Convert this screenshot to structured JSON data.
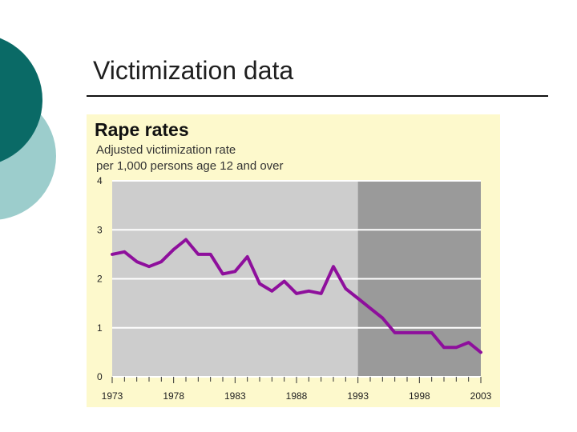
{
  "slide": {
    "title": "Victimization data"
  },
  "colors": {
    "teal_dark": "#0a6a66",
    "teal_light": "#9ccdcc",
    "panel_bg": "#fdf9cc",
    "plot_bg": "#cdcdcd",
    "plot_shaded": "#9a9a9a",
    "gridline": "#ffffff",
    "line": "#8e0f9c"
  },
  "chart_data": {
    "type": "line",
    "title": "Rape rates",
    "subtitle": [
      "Adjusted victimization rate",
      "per 1,000 persons age 12 and over"
    ],
    "xlim": [
      1973,
      2003
    ],
    "ylim": [
      0,
      4
    ],
    "y_ticks": [
      0,
      1,
      2,
      3,
      4
    ],
    "x_tick_labels": [
      "1973",
      "1978",
      "1983",
      "1988",
      "1993",
      "1998",
      "2003"
    ],
    "x_tick_values": [
      1973,
      1978,
      1983,
      1988,
      1993,
      1998,
      2003
    ],
    "shaded_region": [
      1993,
      2003
    ],
    "grid": true,
    "series": [
      {
        "x": [
          1973,
          1974,
          1975,
          1976,
          1977,
          1978,
          1979,
          1980,
          1981,
          1982,
          1983,
          1984,
          1985,
          1986,
          1987,
          1988,
          1989,
          1990,
          1991,
          1992,
          1993,
          1994,
          1995,
          1996,
          1997,
          1998,
          1999,
          2000,
          2001,
          2002,
          2003
        ],
        "y": [
          2.5,
          2.55,
          2.35,
          2.25,
          2.35,
          2.6,
          2.8,
          2.5,
          2.5,
          2.1,
          2.15,
          2.45,
          1.9,
          1.75,
          1.95,
          1.7,
          1.75,
          1.7,
          2.25,
          1.8,
          1.6,
          1.4,
          1.2,
          0.9,
          0.9,
          0.9,
          0.9,
          0.6,
          0.6,
          0.7,
          0.5
        ]
      }
    ]
  }
}
